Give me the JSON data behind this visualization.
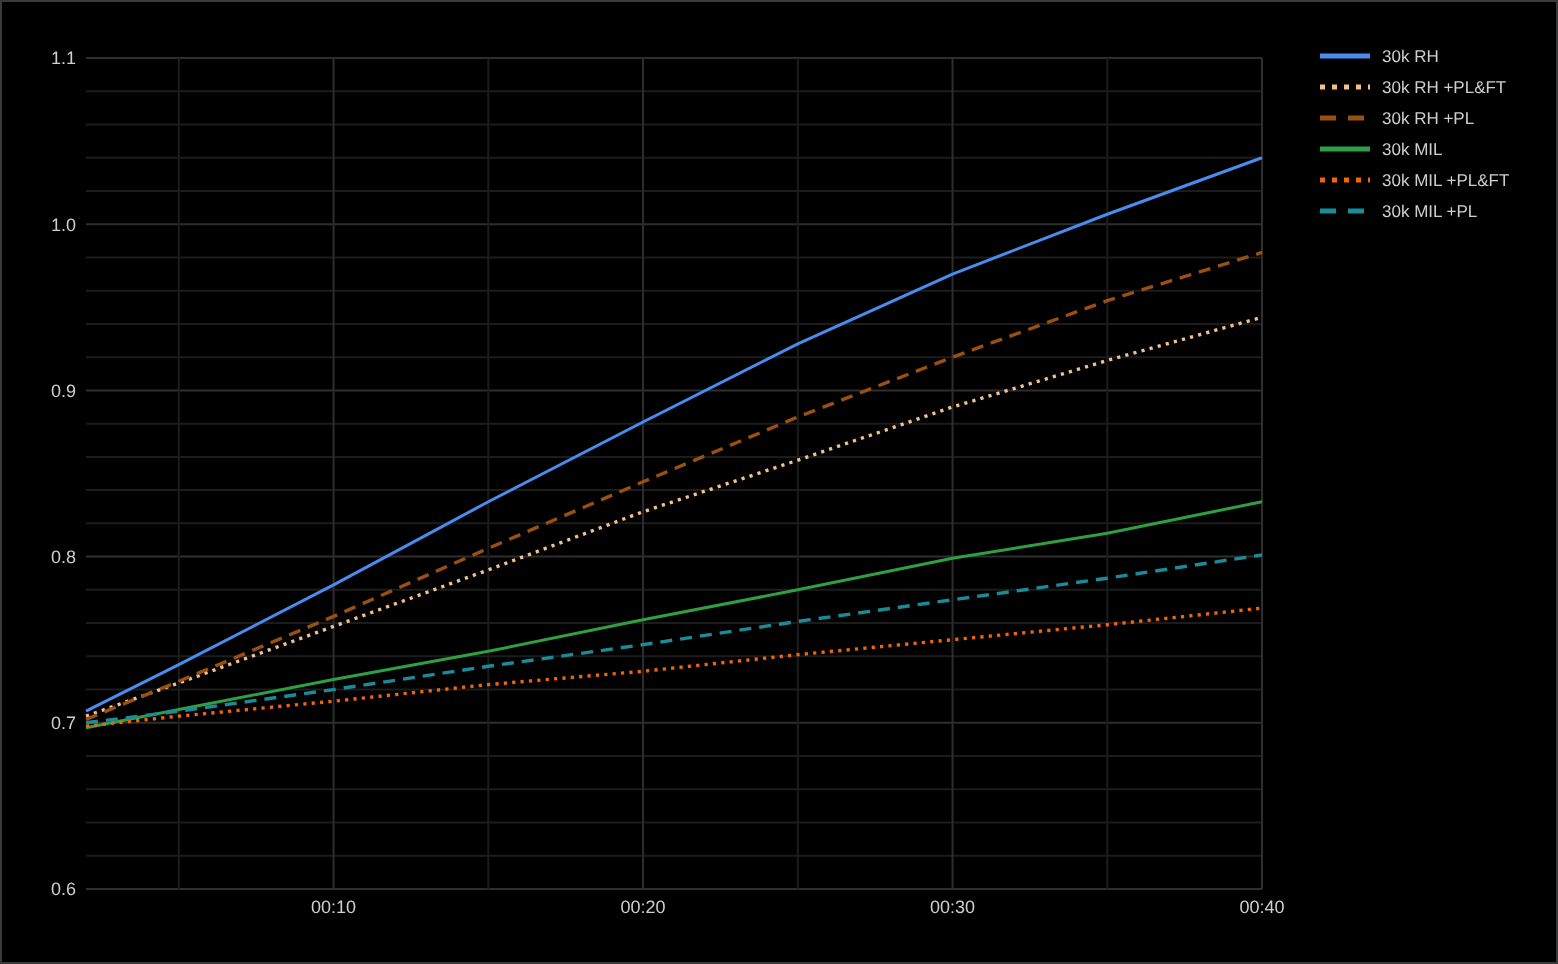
{
  "chart_data": {
    "type": "line",
    "x": [
      2,
      5,
      10,
      15,
      20,
      25,
      30,
      35,
      40
    ],
    "xlim": [
      2,
      40
    ],
    "xticks": [
      {
        "value": 5,
        "label": null
      },
      {
        "value": 10,
        "label": "00:10"
      },
      {
        "value": 15,
        "label": null
      },
      {
        "value": 20,
        "label": "00:20"
      },
      {
        "value": 25,
        "label": null
      },
      {
        "value": 30,
        "label": "00:30"
      },
      {
        "value": 35,
        "label": null
      },
      {
        "value": 40,
        "label": "00:40"
      }
    ],
    "ylim": [
      0.6,
      1.1
    ],
    "yticks": [
      0.6,
      {
        "value": 0.62,
        "label": null
      },
      {
        "value": 0.64,
        "label": null
      },
      {
        "value": 0.66,
        "label": null
      },
      {
        "value": 0.68,
        "label": null
      },
      0.7,
      {
        "value": 0.72,
        "label": null
      },
      {
        "value": 0.74,
        "label": null
      },
      {
        "value": 0.76,
        "label": null
      },
      {
        "value": 0.78,
        "label": null
      },
      0.8,
      {
        "value": 0.82,
        "label": null
      },
      {
        "value": 0.84,
        "label": null
      },
      {
        "value": 0.86,
        "label": null
      },
      {
        "value": 0.88,
        "label": null
      },
      0.9,
      {
        "value": 0.92,
        "label": null
      },
      {
        "value": 0.94,
        "label": null
      },
      {
        "value": 0.96,
        "label": null
      },
      {
        "value": 0.98,
        "label": null
      },
      {
        "value": 1,
        "label": "1.0"
      },
      {
        "value": 1.02,
        "label": null
      },
      {
        "value": 1.04,
        "label": null
      },
      {
        "value": 1.06,
        "label": null
      },
      {
        "value": 1.08,
        "label": null
      },
      1.1
    ],
    "grid": true,
    "legend": "top right",
    "series": [
      {
        "name": "30k RH",
        "color": "#4a8bf0",
        "line_style": "solid",
        "values": [
          0.707,
          0.735,
          0.783,
          0.833,
          0.881,
          0.928,
          0.97,
          1.006,
          1.04
        ]
      },
      {
        "name": "30k RH +PL&FT",
        "color": "#f2c28a",
        "line_style": "dotted",
        "values": [
          0.704,
          0.724,
          0.758,
          0.792,
          0.827,
          0.858,
          0.89,
          0.918,
          0.944
        ]
      },
      {
        "name": "30k RH +PL",
        "color": "#9a5012",
        "line_style": "dashed",
        "values": [
          0.702,
          0.725,
          0.764,
          0.805,
          0.845,
          0.884,
          0.92,
          0.954,
          0.983
        ]
      },
      {
        "name": "30k MIL",
        "color": "#2ea043",
        "line_style": "solid",
        "values": [
          0.697,
          0.708,
          0.726,
          0.743,
          0.762,
          0.78,
          0.799,
          0.814,
          0.833
        ]
      },
      {
        "name": "30k MIL +PL&FT",
        "color": "#f0650a",
        "line_style": "dotted",
        "values": [
          0.698,
          0.704,
          0.713,
          0.723,
          0.731,
          0.741,
          0.75,
          0.759,
          0.769
        ]
      },
      {
        "name": "30k MIL +PL",
        "color": "#1a8c99",
        "line_style": "dashed",
        "values": [
          0.7,
          0.707,
          0.72,
          0.734,
          0.747,
          0.761,
          0.774,
          0.787,
          0.801
        ]
      }
    ]
  }
}
